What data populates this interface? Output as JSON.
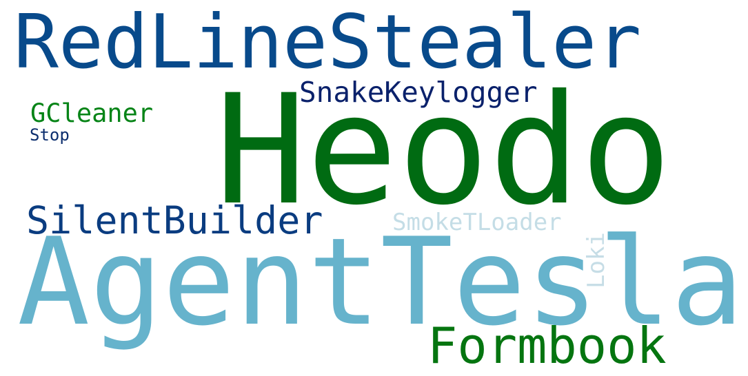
{
  "words": {
    "redline": "RedLineStealer",
    "heodo": "Heodo",
    "snake": "SnakeKeylogger",
    "gcleaner": "GCleaner",
    "stop": "Stop",
    "silent": "SilentBuilder",
    "smoke": "SmokeTLoader",
    "loki": "Loki",
    "agent": "AgentTesla",
    "formbook": "Formbook"
  },
  "colors": {
    "background": "#ffffff",
    "dark_blue": "#084a8b",
    "green": "#006b12",
    "light_blue": "#66b3cc",
    "pale_blue": "#c4dde6"
  }
}
